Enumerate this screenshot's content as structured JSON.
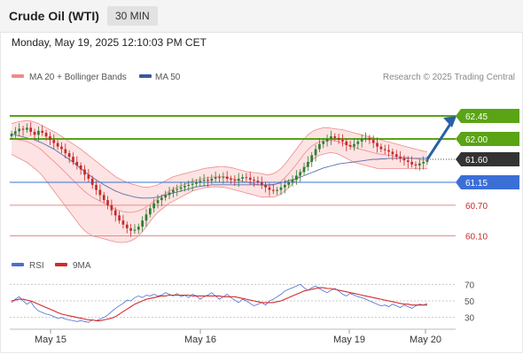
{
  "header": {
    "title": "Crude Oil (WTI)",
    "timeframe": "30 MIN"
  },
  "timestamp": "Monday, May 19, 2025 12:10:03 PM CET",
  "legend": {
    "bollinger": "MA 20 + Bollinger Bands",
    "ma50": "MA 50",
    "credit": "Research © 2025 Trading Central",
    "rsi": "RSI",
    "rsi_ma": "9MA"
  },
  "colors": {
    "bull": "#2e7d32",
    "bear": "#c62828",
    "bollinger": "#f08a8a",
    "bollinger_fill": "#fde0e0",
    "ma50": "#5a6fa8",
    "level_green": "#5aa415",
    "level_blue": "#3b6fd6",
    "level_red": "#e88a8a",
    "current": "#333333",
    "arrow": "#2a5fa8",
    "rsi": "#4a6fd0",
    "rsi_ma": "#d42a2a"
  },
  "chart_data": [
    {
      "type": "candlestick",
      "title": "Crude Oil (WTI)",
      "timeframe": "30 MIN",
      "ylim": [
        59.9,
        62.85
      ],
      "x_ticks": [
        "May 15",
        "May 16",
        "May 19",
        "May 20"
      ],
      "price_levels": [
        {
          "value": 62.45,
          "label": "62.45",
          "kind": "resistance"
        },
        {
          "value": 62.0,
          "label": "62.00",
          "kind": "resistance"
        },
        {
          "value": 61.6,
          "label": "61.60",
          "kind": "current"
        },
        {
          "value": 61.15,
          "label": "61.15",
          "kind": "pivot"
        },
        {
          "value": 60.7,
          "label": "60.70",
          "kind": "support"
        },
        {
          "value": 60.1,
          "label": "60.10",
          "kind": "support"
        }
      ],
      "close": [
        62.1,
        62.15,
        62.2,
        62.18,
        62.22,
        62.14,
        62.08,
        62.16,
        62.12,
        62.05,
        61.98,
        61.92,
        61.85,
        61.8,
        61.72,
        61.65,
        61.55,
        61.48,
        61.4,
        61.3,
        61.22,
        61.1,
        61.0,
        60.9,
        60.8,
        60.7,
        60.6,
        60.5,
        60.4,
        60.32,
        60.25,
        60.2,
        60.22,
        60.28,
        60.4,
        60.52,
        60.64,
        60.74,
        60.8,
        60.85,
        60.9,
        60.95,
        61.0,
        61.02,
        61.05,
        61.08,
        61.1,
        61.12,
        61.15,
        61.18,
        61.2,
        61.18,
        61.22,
        61.25,
        61.24,
        61.26,
        61.22,
        61.2,
        61.18,
        61.22,
        61.25,
        61.24,
        61.2,
        61.18,
        61.15,
        61.1,
        61.05,
        61.0,
        60.98,
        61.0,
        61.05,
        61.1,
        61.15,
        61.2,
        61.28,
        61.35,
        61.45,
        61.55,
        61.68,
        61.8,
        61.9,
        61.95,
        62.0,
        62.05,
        62.02,
        61.98,
        61.95,
        61.88,
        61.85,
        61.9,
        61.95,
        62.0,
        62.02,
        61.98,
        61.92,
        61.85,
        61.8,
        61.78,
        61.75,
        61.7,
        61.65,
        61.62,
        61.58,
        61.55,
        61.5,
        61.48,
        61.52,
        61.55,
        61.6
      ],
      "bollinger_upper": [
        62.3,
        62.32,
        62.34,
        62.35,
        62.36,
        62.35,
        62.33,
        62.3,
        62.26,
        62.22,
        62.18,
        62.14,
        62.1,
        62.05,
        62.0,
        61.95,
        61.9,
        61.85,
        61.8,
        61.74,
        61.68,
        61.62,
        61.56,
        61.5,
        61.44,
        61.38,
        61.32,
        61.26,
        61.22,
        61.18,
        61.15,
        61.12,
        61.1,
        61.08,
        61.06,
        61.05,
        61.06,
        61.08,
        61.1,
        61.14,
        61.18,
        61.22,
        61.26,
        61.28,
        61.3,
        61.32,
        61.34,
        61.36,
        61.38,
        61.4,
        61.42,
        61.43,
        61.44,
        61.45,
        61.46,
        61.46,
        61.45,
        61.44,
        61.42,
        61.4,
        61.38,
        61.36,
        61.35,
        61.34,
        61.33,
        61.32,
        61.3,
        61.3,
        61.32,
        61.36,
        61.42,
        61.5,
        61.6,
        61.7,
        61.8,
        61.9,
        62.0,
        62.08,
        62.14,
        62.18,
        62.2,
        62.22,
        62.22,
        62.21,
        62.2,
        62.19,
        62.18,
        62.16,
        62.14,
        62.12,
        62.1,
        62.08,
        62.06,
        62.04,
        62.02,
        62.0,
        61.98,
        61.96,
        61.94,
        61.92,
        61.9,
        61.88,
        61.86,
        61.84,
        61.82,
        61.8,
        61.78,
        61.76,
        61.75
      ],
      "bollinger_lower": [
        61.7,
        61.66,
        61.62,
        61.58,
        61.54,
        61.48,
        61.42,
        61.36,
        61.28,
        61.18,
        61.08,
        60.98,
        60.88,
        60.78,
        60.68,
        60.58,
        60.48,
        60.38,
        60.28,
        60.2,
        60.14,
        60.1,
        60.08,
        60.06,
        60.04,
        60.02,
        60.0,
        59.98,
        59.97,
        59.97,
        59.98,
        60.0,
        60.04,
        60.1,
        60.18,
        60.28,
        60.38,
        60.48,
        60.56,
        60.62,
        60.68,
        60.74,
        60.78,
        60.82,
        60.86,
        60.9,
        60.94,
        60.98,
        61.0,
        61.02,
        61.04,
        61.05,
        61.06,
        61.06,
        61.06,
        61.05,
        61.04,
        61.02,
        61.0,
        60.98,
        60.96,
        60.94,
        60.92,
        60.9,
        60.88,
        60.86,
        60.86,
        60.86,
        60.86,
        60.88,
        60.92,
        60.98,
        61.04,
        61.12,
        61.2,
        61.3,
        61.4,
        61.5,
        61.58,
        61.64,
        61.68,
        61.7,
        61.72,
        61.73,
        61.72,
        61.7,
        61.66,
        61.62,
        61.58,
        61.54,
        61.52,
        61.5,
        61.48,
        61.46,
        61.44,
        61.42,
        61.42,
        61.42,
        61.42,
        61.42,
        61.42,
        61.42,
        61.42,
        61.42,
        61.42,
        61.42,
        61.42,
        61.42,
        61.42
      ],
      "ma50": [
        62.1,
        62.08,
        62.06,
        62.04,
        62.02,
        62.0,
        61.98,
        61.95,
        61.92,
        61.88,
        61.84,
        61.8,
        61.75,
        61.7,
        61.65,
        61.6,
        61.54,
        61.48,
        61.42,
        61.36,
        61.3,
        61.25,
        61.2,
        61.15,
        61.1,
        61.06,
        61.02,
        60.98,
        60.95,
        60.92,
        60.9,
        60.88,
        60.86,
        60.85,
        60.84,
        60.84,
        60.84,
        60.85,
        60.86,
        60.88,
        60.9,
        60.92,
        60.94,
        60.96,
        60.98,
        61.0,
        61.02,
        61.04,
        61.06,
        61.07,
        61.08,
        61.09,
        61.1,
        61.1,
        61.1,
        61.1,
        61.1,
        61.1,
        61.1,
        61.1,
        61.1,
        61.1,
        61.1,
        61.1,
        61.1,
        61.1,
        61.1,
        61.1,
        61.11,
        61.12,
        61.14,
        61.16,
        61.18,
        61.2,
        61.22,
        61.25,
        61.28,
        61.31,
        61.34,
        61.37,
        61.4,
        61.43,
        61.45,
        61.47,
        61.49,
        61.51,
        61.52,
        61.53,
        61.54,
        61.55,
        61.56,
        61.57,
        61.58,
        61.59,
        61.6,
        61.6,
        61.61,
        61.61,
        61.62,
        61.62,
        61.62,
        61.62,
        61.62,
        61.62,
        61.62,
        61.62,
        61.62,
        61.62,
        61.62
      ],
      "forecast": {
        "from": 61.6,
        "to": 62.45
      }
    },
    {
      "type": "line",
      "title": "RSI",
      "ylim": [
        20,
        80
      ],
      "y_ticks": [
        70,
        50,
        30
      ],
      "series": [
        {
          "name": "RSI",
          "values": [
            48,
            52,
            55,
            50,
            46,
            49,
            42,
            38,
            36,
            34,
            33,
            31,
            29,
            30,
            28,
            27,
            26,
            25,
            26,
            25,
            24,
            27,
            26,
            28,
            30,
            33,
            37,
            41,
            44,
            47,
            51,
            50,
            54,
            56,
            54,
            57,
            56,
            58,
            56,
            57,
            60,
            58,
            56,
            59,
            55,
            57,
            54,
            58,
            56,
            52,
            55,
            57,
            60,
            56,
            52,
            55,
            58,
            54,
            51,
            48,
            52,
            50,
            47,
            44,
            46,
            48,
            45,
            50,
            52,
            55,
            58,
            62,
            64,
            66,
            68,
            70,
            66,
            63,
            66,
            68,
            65,
            62,
            60,
            63,
            65,
            62,
            58,
            56,
            59,
            57,
            55,
            54,
            52,
            50,
            48,
            46,
            44,
            45,
            43,
            46,
            44,
            42,
            45,
            43,
            41,
            44,
            46,
            45,
            47
          ]
        },
        {
          "name": "9MA",
          "values": [
            50,
            51,
            52,
            52,
            51,
            50,
            48,
            46,
            44,
            42,
            40,
            38,
            36,
            34,
            33,
            32,
            31,
            30,
            29,
            28,
            27,
            27,
            26,
            26,
            27,
            28,
            29,
            31,
            34,
            37,
            40,
            43,
            46,
            48,
            50,
            52,
            53,
            54,
            55,
            56,
            56,
            57,
            57,
            57,
            57,
            57,
            57,
            56,
            56,
            56,
            56,
            56,
            56,
            56,
            56,
            55,
            55,
            55,
            55,
            54,
            53,
            52,
            51,
            50,
            49,
            48,
            48,
            48,
            48,
            49,
            50,
            52,
            54,
            56,
            58,
            60,
            62,
            63,
            64,
            65,
            66,
            66,
            65,
            65,
            64,
            63,
            62,
            61,
            60,
            59,
            58,
            57,
            56,
            55,
            54,
            53,
            52,
            51,
            50,
            49,
            48,
            47,
            46,
            46,
            45,
            45,
            45,
            45,
            45
          ]
        }
      ]
    }
  ]
}
